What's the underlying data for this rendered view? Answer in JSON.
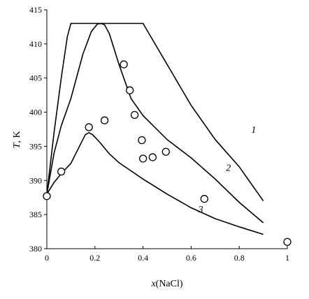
{
  "chart_data": {
    "type": "line",
    "xlabel": "x(NaCl)",
    "ylabel": "T, K",
    "xlim": [
      0,
      1
    ],
    "ylim": [
      380,
      415
    ],
    "xticks": [
      "0",
      "0.2",
      "0.4",
      "0.6",
      "0.8",
      "1"
    ],
    "yticks": [
      "380",
      "385",
      "390",
      "395",
      "400",
      "405",
      "410",
      "415"
    ],
    "grid": false,
    "legend": "none",
    "series": [
      {
        "name": "1",
        "x": [
          0,
          0.03,
          0.06,
          0.085,
          0.1,
          0.2,
          0.3,
          0.4,
          0.5,
          0.6,
          0.7,
          0.8,
          0.9
        ],
        "y": [
          388,
          397,
          405,
          411,
          413,
          413,
          413,
          413,
          407,
          401,
          396,
          392,
          387
        ]
      },
      {
        "name": "2",
        "x": [
          0,
          0.03,
          0.06,
          0.1,
          0.15,
          0.185,
          0.21,
          0.225,
          0.24,
          0.26,
          0.3,
          0.35,
          0.4,
          0.5,
          0.6,
          0.7,
          0.8,
          0.9
        ],
        "y": [
          388,
          394,
          398,
          402,
          408.5,
          411.8,
          412.9,
          413,
          412.8,
          411.5,
          407,
          402,
          399.5,
          396,
          393.3,
          390.2,
          386.8,
          383.8
        ]
      },
      {
        "name": "3",
        "x": [
          0,
          0.03,
          0.06,
          0.1,
          0.13,
          0.16,
          0.175,
          0.19,
          0.22,
          0.26,
          0.3,
          0.4,
          0.5,
          0.6,
          0.7,
          0.8,
          0.9
        ],
        "y": [
          388,
          389.7,
          391,
          392.5,
          394.6,
          396.7,
          397,
          396.7,
          395.6,
          393.9,
          392.6,
          390.2,
          388,
          386,
          384.4,
          383.2,
          382.1
        ]
      }
    ],
    "points": {
      "x": [
        0,
        0.06,
        0.175,
        0.24,
        0.32,
        0.345,
        0.365,
        0.395,
        0.4,
        0.44,
        0.495,
        0.655,
        1.0
      ],
      "y": [
        387.7,
        391.3,
        397.8,
        398.8,
        407,
        403.2,
        399.6,
        395.9,
        393.2,
        393.4,
        394.2,
        387.3,
        381
      ]
    },
    "curve_labels": [
      {
        "text": "1",
        "x": 0.86,
        "y": 397
      },
      {
        "text": "2",
        "x": 0.755,
        "y": 391.4
      },
      {
        "text": "3",
        "x": 0.64,
        "y": 385.3
      }
    ]
  }
}
